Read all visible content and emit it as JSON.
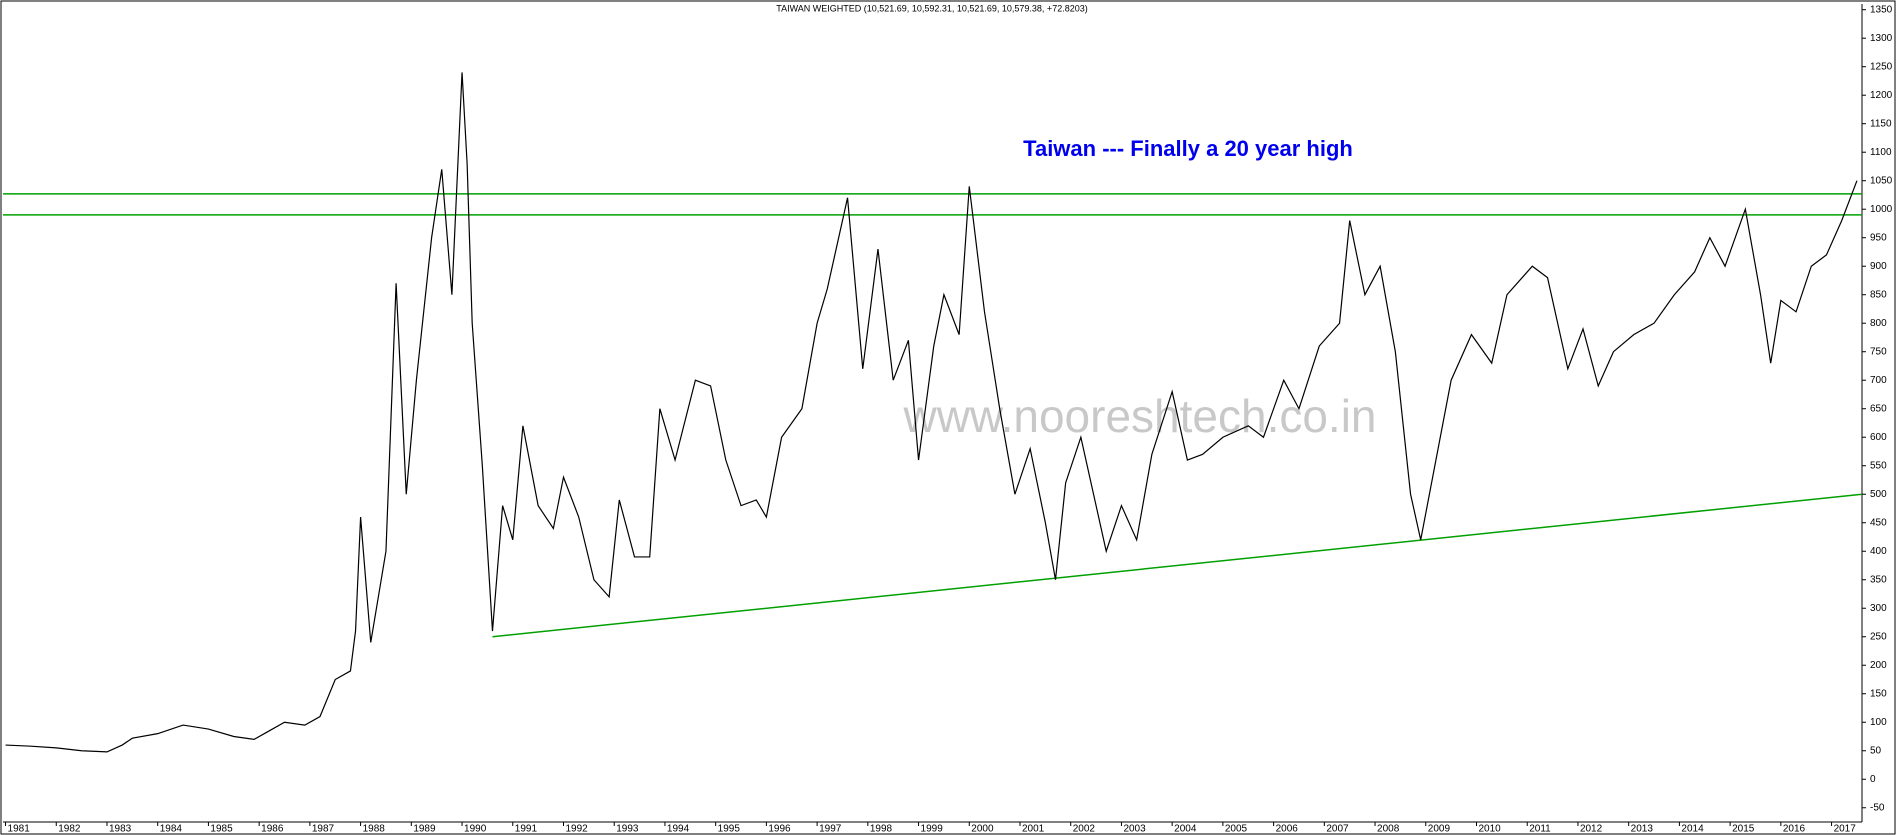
{
  "chart_data": {
    "type": "line",
    "title": "TAIWAN WEIGHTED (10,521.69, 10,592.31, 10,521.69, 10,579.38, +72.8203)",
    "annotation": "Taiwan --- Finally a 20 year high",
    "watermark": "www.nooreshtech.co.in",
    "color": "#000000",
    "x": [
      1981,
      1981.5,
      1982,
      1982.5,
      1983,
      1983.3,
      1983.5,
      1984,
      1984.5,
      1985,
      1985.5,
      1985.9,
      1986.2,
      1986.5,
      1986.9,
      1987.2,
      1987.5,
      1987.8,
      1987.9,
      1988,
      1988.2,
      1988.5,
      1988.7,
      1988.9,
      1989.1,
      1989.4,
      1989.6,
      1989.8,
      1990,
      1990.1,
      1990.2,
      1990.4,
      1990.6,
      1990.8,
      1991,
      1991.2,
      1991.5,
      1991.8,
      1992,
      1992.3,
      1992.6,
      1992.9,
      1993.1,
      1993.4,
      1993.7,
      1993.9,
      1994.2,
      1994.6,
      1994.9,
      1995.2,
      1995.5,
      1995.8,
      1996,
      1996.3,
      1996.7,
      1997,
      1997.2,
      1997.6,
      1997.9,
      1998.2,
      1998.5,
      1998.8,
      1999,
      1999.3,
      1999.5,
      1999.8,
      2000,
      2000.3,
      2000.6,
      2000.9,
      2001.2,
      2001.5,
      2001.7,
      2001.9,
      2002.2,
      2002.5,
      2002.7,
      2003,
      2003.3,
      2003.6,
      2004,
      2004.3,
      2004.6,
      2005,
      2005.5,
      2005.8,
      2006.2,
      2006.5,
      2006.9,
      2007.3,
      2007.5,
      2007.8,
      2008.1,
      2008.4,
      2008.7,
      2008.9,
      2009.2,
      2009.5,
      2009.9,
      2010.3,
      2010.6,
      2011.1,
      2011.4,
      2011.8,
      2012.1,
      2012.4,
      2012.7,
      2013.1,
      2013.5,
      2013.9,
      2014.3,
      2014.6,
      2014.9,
      2015.3,
      2015.6,
      2015.8,
      2016,
      2016.3,
      2016.6,
      2016.9,
      2017.2,
      2017.5
    ],
    "values": [
      60,
      58,
      55,
      50,
      48,
      60,
      72,
      80,
      95,
      88,
      75,
      70,
      85,
      100,
      95,
      110,
      175,
      190,
      260,
      460,
      240,
      400,
      870,
      500,
      700,
      950,
      1070,
      850,
      1240,
      1080,
      800,
      550,
      260,
      480,
      420,
      620,
      480,
      440,
      530,
      460,
      350,
      320,
      490,
      390,
      390,
      650,
      560,
      700,
      690,
      560,
      480,
      490,
      460,
      600,
      650,
      800,
      860,
      1020,
      720,
      930,
      700,
      770,
      560,
      760,
      850,
      780,
      1040,
      820,
      650,
      500,
      580,
      450,
      350,
      520,
      600,
      480,
      400,
      480,
      420,
      570,
      680,
      560,
      570,
      600,
      620,
      600,
      700,
      650,
      760,
      800,
      980,
      850,
      900,
      750,
      500,
      420,
      560,
      700,
      780,
      730,
      850,
      900,
      880,
      720,
      790,
      690,
      750,
      780,
      800,
      850,
      890,
      950,
      900,
      1000,
      850,
      730,
      840,
      820,
      900,
      920,
      980,
      1050
    ],
    "hlines": [
      1027,
      990
    ],
    "trendline": {
      "x": [
        1990.6,
        2017.6
      ],
      "y": [
        250,
        500
      ]
    },
    "ref_color": "#00a000",
    "xlim": [
      1980.95,
      2017.6
    ],
    "ylim": [
      -75,
      1360
    ],
    "xticks": [
      1981,
      1982,
      1983,
      1984,
      1985,
      1986,
      1987,
      1988,
      1989,
      1990,
      1991,
      1992,
      1993,
      1994,
      1995,
      1996,
      1997,
      1998,
      1999,
      2000,
      2001,
      2002,
      2003,
      2004,
      2005,
      2006,
      2007,
      2008,
      2009,
      2010,
      2011,
      2012,
      2013,
      2014,
      2015,
      2016,
      2017
    ],
    "yticks": [
      -50,
      0,
      50,
      100,
      150,
      200,
      250,
      300,
      350,
      400,
      450,
      500,
      550,
      600,
      650,
      700,
      750,
      800,
      850,
      900,
      950,
      1000,
      1050,
      1100,
      1150,
      1200,
      1250,
      1300,
      1350
    ]
  }
}
